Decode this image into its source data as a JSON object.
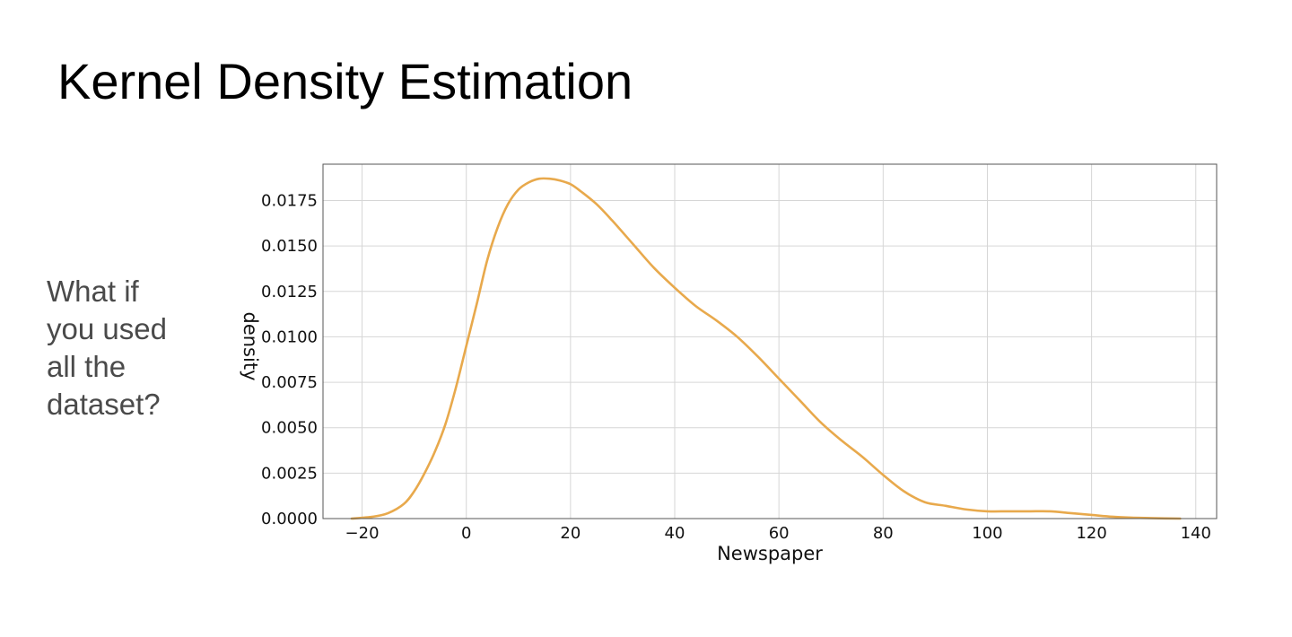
{
  "slide": {
    "title": "Kernel Density Estimation",
    "side_text_lines": [
      "What if",
      "you used",
      "all the",
      "dataset?"
    ]
  },
  "chart_data": {
    "type": "line",
    "xlabel": "Newspaper",
    "ylabel": "density",
    "xlim": [
      -27.5,
      144
    ],
    "ylim": [
      0,
      0.0195
    ],
    "x_ticks": [
      -20,
      0,
      20,
      40,
      60,
      80,
      100,
      120,
      140
    ],
    "x_tick_labels": [
      "−20",
      "0",
      "20",
      "40",
      "60",
      "80",
      "100",
      "120",
      "140"
    ],
    "y_ticks": [
      0,
      0.0025,
      0.005,
      0.0075,
      0.01,
      0.0125,
      0.015,
      0.0175
    ],
    "y_tick_labels": [
      "0.0000",
      "0.0025",
      "0.0050",
      "0.0075",
      "0.0100",
      "0.0125",
      "0.0150",
      "0.0175"
    ],
    "grid": true,
    "series": [
      {
        "color": "#E8A94C",
        "x": [
          -22,
          -18,
          -15,
          -12,
          -10,
          -8,
          -6,
          -4,
          -2,
          0,
          2,
          4,
          6,
          8,
          10,
          12,
          14,
          16,
          18,
          20,
          22,
          25,
          28,
          32,
          36,
          40,
          44,
          48,
          52,
          56,
          60,
          64,
          68,
          72,
          76,
          80,
          84,
          88,
          92,
          96,
          100,
          104,
          108,
          112,
          116,
          120,
          124,
          128,
          132,
          137
        ],
        "y": [
          0.0,
          0.0001,
          0.0003,
          0.0008,
          0.0015,
          0.0025,
          0.0037,
          0.0052,
          0.0072,
          0.0095,
          0.0118,
          0.0142,
          0.016,
          0.0173,
          0.0181,
          0.0185,
          0.0187,
          0.0187,
          0.0186,
          0.0184,
          0.018,
          0.0173,
          0.0164,
          0.0151,
          0.0138,
          0.0127,
          0.0117,
          0.0109,
          0.01,
          0.0089,
          0.0077,
          0.0065,
          0.0053,
          0.0043,
          0.0034,
          0.0024,
          0.0015,
          0.0009,
          0.0007,
          0.0005,
          0.0004,
          0.0004,
          0.0004,
          0.0004,
          0.0003,
          0.0002,
          0.0001,
          5e-05,
          2e-05,
          0.0
        ]
      }
    ]
  }
}
